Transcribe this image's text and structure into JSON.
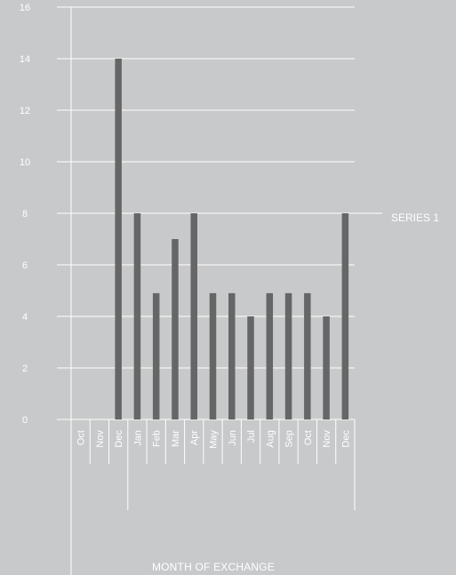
{
  "chart_data": {
    "type": "bar",
    "categories": [
      "Oct",
      "Nov",
      "Dec",
      "Jan",
      "Feb",
      "Mar",
      "Apr",
      "May",
      "Jun",
      "Jul",
      "Aug",
      "Sep",
      "Oct",
      "Nov",
      "Dec"
    ],
    "series": [
      {
        "name": "SERIES 1",
        "values": [
          0,
          0,
          14,
          8,
          4.9,
          7,
          8,
          4.9,
          4.9,
          4,
          4.9,
          4.9,
          4.9,
          4,
          8
        ]
      }
    ],
    "yticks": [
      0,
      2,
      4,
      6,
      8,
      10,
      12,
      14,
      16
    ],
    "ylim": [
      0,
      16
    ],
    "xlabel": "MONTH OF EXCHANGE",
    "ylabel": "",
    "title": "",
    "grid": true,
    "legend_position": "right",
    "colors": {
      "bar": "#666666",
      "grid": "#ffffff",
      "text": "#ffffff",
      "background": "#c8c9ca"
    }
  }
}
